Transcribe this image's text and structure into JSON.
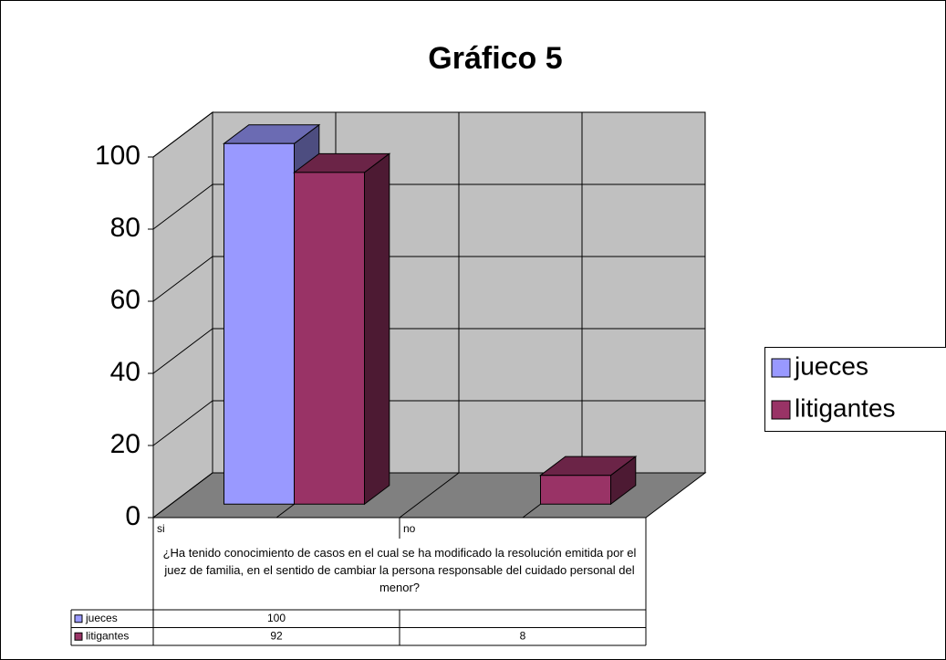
{
  "chart_data": {
    "type": "bar3d",
    "title": "Gráfico 5",
    "x_label": "¿Ha tenido conocimiento de casos en el cual se ha modificado la resolución emitida por el juez de familia, en el sentido de cambiar la persona responsable del cuidado personal del menor?",
    "categories": [
      "si",
      "no"
    ],
    "series": [
      {
        "name": "jueces",
        "color": "#9999ff",
        "values": [
          100,
          null
        ]
      },
      {
        "name": "litigantes",
        "color": "#993366",
        "values": [
          92,
          8
        ]
      }
    ],
    "ylim": [
      0,
      100
    ],
    "yticks": [
      0,
      20,
      40,
      60,
      80,
      100
    ],
    "grid": true,
    "legend": "right",
    "data_table": true
  }
}
